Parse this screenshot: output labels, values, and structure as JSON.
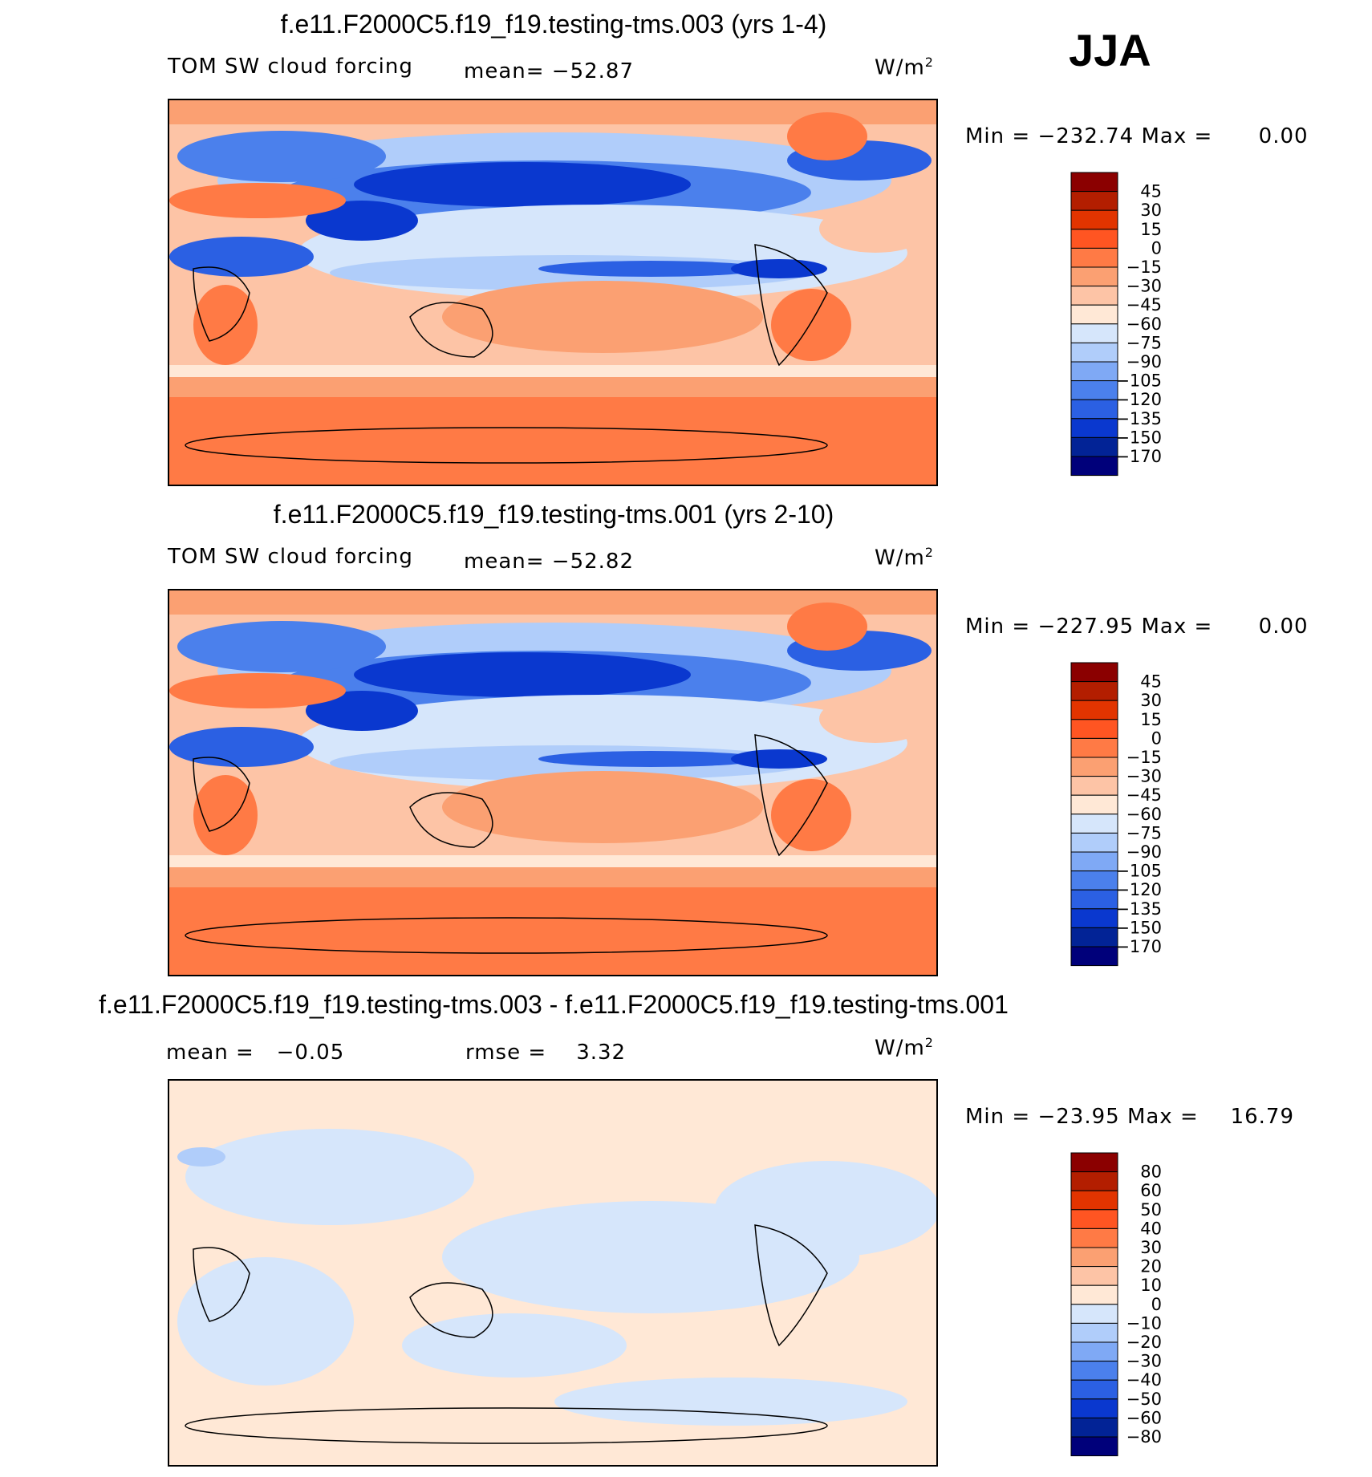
{
  "season": "JJA",
  "units": "W/m",
  "units_sup": "2",
  "colors": {
    "warm": [
      "#ff7a45",
      "#fba072",
      "#fdc4a6",
      "#ffe8d6"
    ],
    "cool": [
      "#d6e6fb",
      "#b0cdfa",
      "#7fa9f5",
      "#4b80ec",
      "#2b60e3",
      "#0a38cf",
      "#022396"
    ]
  },
  "panels": [
    {
      "title": "f.e11.F2000C5.f19_f19.testing-tms.003 (yrs 1-4)",
      "variable": "TOM SW cloud forcing",
      "mean_text": "mean= −52.87",
      "min_label": "Min =",
      "min_value": "−232.74",
      "max_label": "Max =",
      "max_value": "0.00",
      "colorbar": {
        "labels": [
          "45",
          "30",
          "15",
          "0",
          "−15",
          "−30",
          "−45",
          "−60",
          "−75",
          "−90",
          "−105",
          "−120",
          "−135",
          "−150",
          "−170"
        ],
        "colors": [
          "#8b0000",
          "#b31e00",
          "#e23400",
          "#ff5522",
          "#ff7a45",
          "#fba072",
          "#fdc4a6",
          "#ffe8d6",
          "#d6e6fb",
          "#b0cdfa",
          "#7fa9f5",
          "#4b80ec",
          "#2b60e3",
          "#0a38cf",
          "#022396",
          "#00007a"
        ]
      }
    },
    {
      "title": "f.e11.F2000C5.f19_f19.testing-tms.001 (yrs 2-10)",
      "variable": "TOM SW cloud forcing",
      "mean_text": "mean= −52.82",
      "min_label": "Min =",
      "min_value": "−227.95",
      "max_label": "Max =",
      "max_value": "0.00",
      "colorbar": {
        "labels": [
          "45",
          "30",
          "15",
          "0",
          "−15",
          "−30",
          "−45",
          "−60",
          "−75",
          "−90",
          "−105",
          "−120",
          "−135",
          "−150",
          "−170"
        ],
        "colors": [
          "#8b0000",
          "#b31e00",
          "#e23400",
          "#ff5522",
          "#ff7a45",
          "#fba072",
          "#fdc4a6",
          "#ffe8d6",
          "#d6e6fb",
          "#b0cdfa",
          "#7fa9f5",
          "#4b80ec",
          "#2b60e3",
          "#0a38cf",
          "#022396",
          "#00007a"
        ]
      }
    },
    {
      "title": "f.e11.F2000C5.f19_f19.testing-tms.003 - f.e11.F2000C5.f19_f19.testing-tms.001",
      "mean_text": "mean =   −0.05",
      "rmse_text": "rmse =    3.32",
      "min_label": "Min =",
      "min_value": "−23.95",
      "max_label": "Max =",
      "max_value": "16.79",
      "colorbar": {
        "labels": [
          "80",
          "60",
          "50",
          "40",
          "30",
          "20",
          "10",
          "0",
          "−10",
          "−20",
          "−30",
          "−40",
          "−50",
          "−60",
          "−80"
        ],
        "colors": [
          "#8b0000",
          "#b31e00",
          "#e23400",
          "#ff5522",
          "#ff7a45",
          "#fba072",
          "#fdc4a6",
          "#ffe8d6",
          "#d6e6fb",
          "#b0cdfa",
          "#7fa9f5",
          "#4b80ec",
          "#2b60e3",
          "#0a38cf",
          "#022396",
          "#00007a"
        ]
      }
    }
  ]
}
